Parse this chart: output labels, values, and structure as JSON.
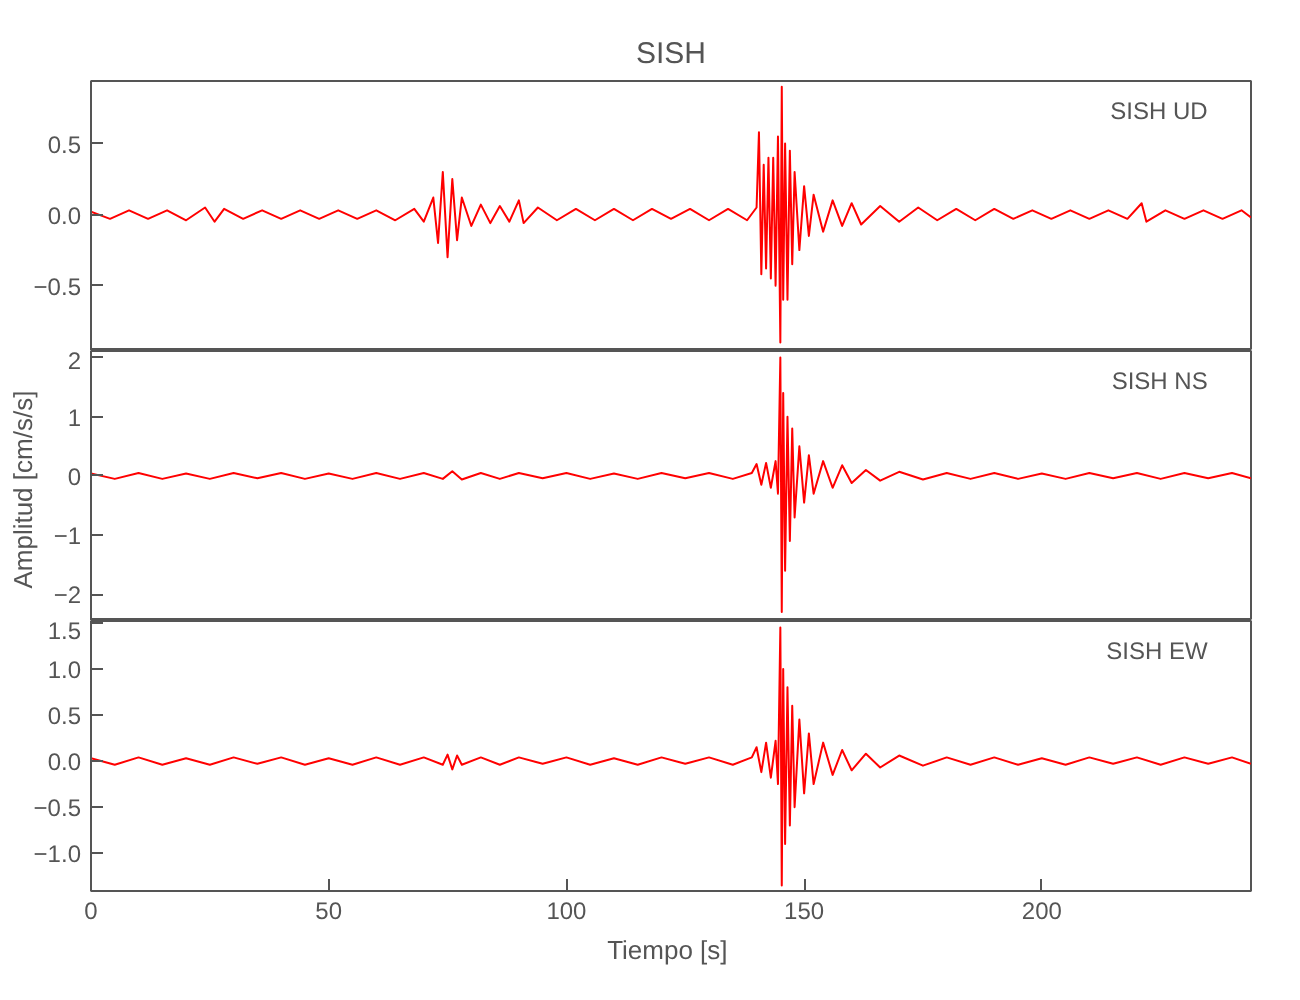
{
  "chart_data": [
    {
      "type": "line",
      "title": "SISH",
      "annotations": [
        "SISH   UD"
      ],
      "xlim": [
        0,
        244
      ],
      "xticks": [
        0,
        50,
        100,
        150,
        200
      ],
      "ylim": [
        -0.96,
        0.94
      ],
      "yticks": [
        {
          "value": -0.5,
          "label": "−0.5"
        },
        {
          "value": 0,
          "label": "0.0"
        },
        {
          "value": 0.5,
          "label": "0.5"
        }
      ],
      "tick_labels": "y",
      "grid": false,
      "series": [
        {
          "color": "#ff0000",
          "x": [
            0,
            4,
            8,
            12,
            16,
            20,
            24,
            26,
            28,
            32,
            36,
            40,
            44,
            48,
            52,
            56,
            60,
            64,
            68,
            70,
            72,
            73,
            74,
            75,
            76,
            77,
            78,
            80,
            82,
            84,
            86,
            88,
            90,
            91,
            94,
            98,
            102,
            106,
            110,
            114,
            118,
            122,
            126,
            130,
            134,
            138,
            140,
            140.5,
            141,
            141.5,
            142,
            142.5,
            143,
            143.5,
            144,
            144.5,
            145,
            145.3,
            145.6,
            146,
            146.5,
            147,
            147.5,
            148,
            149,
            150,
            151,
            152,
            154,
            156,
            158,
            160,
            162,
            166,
            170,
            174,
            178,
            182,
            186,
            190,
            194,
            198,
            202,
            206,
            210,
            214,
            218,
            221,
            222,
            226,
            230,
            234,
            238,
            242,
            244
          ],
          "values": [
            0.02,
            -0.03,
            0.03,
            -0.03,
            0.03,
            -0.04,
            0.05,
            -0.05,
            0.04,
            -0.03,
            0.03,
            -0.03,
            0.03,
            -0.03,
            0.03,
            -0.03,
            0.03,
            -0.04,
            0.04,
            -0.05,
            0.12,
            -0.2,
            0.3,
            -0.3,
            0.25,
            -0.18,
            0.12,
            -0.08,
            0.07,
            -0.06,
            0.06,
            -0.05,
            0.1,
            -0.06,
            0.05,
            -0.04,
            0.04,
            -0.04,
            0.04,
            -0.04,
            0.04,
            -0.03,
            0.04,
            -0.04,
            0.04,
            -0.04,
            0.05,
            0.58,
            -0.42,
            0.35,
            -0.38,
            0.4,
            -0.45,
            0.4,
            -0.5,
            0.55,
            -0.9,
            0.9,
            -0.6,
            0.5,
            -0.6,
            0.45,
            -0.35,
            0.3,
            -0.25,
            0.2,
            -0.15,
            0.14,
            -0.12,
            0.1,
            -0.08,
            0.08,
            -0.07,
            0.06,
            -0.05,
            0.05,
            -0.04,
            0.04,
            -0.04,
            0.04,
            -0.03,
            0.03,
            -0.03,
            0.03,
            -0.03,
            0.03,
            -0.03,
            0.08,
            -0.05,
            0.03,
            -0.03,
            0.03,
            -0.03,
            0.03,
            -0.02
          ]
        }
      ]
    },
    {
      "type": "line",
      "ylabel": "Amplitud  [cm/s/s]",
      "annotations": [
        "SISH   NS"
      ],
      "xlim": [
        0,
        244
      ],
      "xticks": [
        0,
        50,
        100,
        150,
        200
      ],
      "ylim": [
        -2.45,
        2.11
      ],
      "yticks": [
        {
          "value": -2,
          "label": "−2"
        },
        {
          "value": -1,
          "label": "−1"
        },
        0,
        1,
        2
      ],
      "tick_labels": "y",
      "grid": false,
      "series": [
        {
          "color": "#ff0000",
          "x": [
            0,
            5,
            10,
            15,
            20,
            25,
            30,
            35,
            40,
            45,
            50,
            55,
            60,
            65,
            70,
            74,
            76,
            78,
            82,
            86,
            90,
            95,
            100,
            105,
            110,
            115,
            120,
            125,
            130,
            135,
            139,
            140,
            141,
            142,
            143,
            144,
            144.5,
            145,
            145.3,
            145.6,
            146,
            146.5,
            147,
            147.5,
            148,
            149,
            150,
            151,
            152,
            154,
            156,
            158,
            160,
            163,
            166,
            170,
            175,
            180,
            185,
            190,
            195,
            200,
            205,
            210,
            215,
            220,
            225,
            230,
            235,
            240,
            244
          ],
          "values": [
            0.04,
            -0.05,
            0.05,
            -0.05,
            0.04,
            -0.05,
            0.05,
            -0.04,
            0.05,
            -0.05,
            0.04,
            -0.05,
            0.05,
            -0.05,
            0.05,
            -0.05,
            0.08,
            -0.06,
            0.05,
            -0.05,
            0.05,
            -0.04,
            0.05,
            -0.05,
            0.04,
            -0.05,
            0.05,
            -0.04,
            0.05,
            -0.05,
            0.05,
            0.2,
            -0.15,
            0.22,
            -0.2,
            0.25,
            -0.3,
            2.0,
            -2.3,
            1.4,
            -1.6,
            1.0,
            -1.1,
            0.8,
            -0.7,
            0.5,
            -0.45,
            0.35,
            -0.3,
            0.25,
            -0.2,
            0.18,
            -0.12,
            0.1,
            -0.08,
            0.07,
            -0.06,
            0.05,
            -0.05,
            0.05,
            -0.05,
            0.04,
            -0.05,
            0.05,
            -0.04,
            0.05,
            -0.05,
            0.05,
            -0.04,
            0.05,
            -0.04
          ]
        }
      ]
    },
    {
      "type": "line",
      "xlabel": "Tiempo  [s]",
      "annotations": [
        "SISH   EW"
      ],
      "xlim": [
        0,
        244
      ],
      "xticks": [
        0,
        50,
        100,
        150,
        200
      ],
      "ylim": [
        -1.41,
        1.52
      ],
      "yticks": [
        {
          "value": -1,
          "label": "−1.0"
        },
        {
          "value": -0.5,
          "label": "−0.5"
        },
        {
          "value": 0,
          "label": "0.0"
        },
        {
          "value": 0.5,
          "label": "0.5"
        },
        {
          "value": 1,
          "label": "1.0"
        },
        {
          "value": 1.5,
          "label": "1.5"
        }
      ],
      "grid": false,
      "series": [
        {
          "color": "#ff0000",
          "x": [
            0,
            5,
            10,
            15,
            20,
            25,
            30,
            35,
            40,
            45,
            50,
            55,
            60,
            65,
            70,
            74,
            75,
            76,
            77,
            78,
            82,
            86,
            90,
            95,
            100,
            105,
            110,
            115,
            120,
            125,
            130,
            135,
            139,
            140,
            141,
            142,
            143,
            144,
            144.5,
            145,
            145.3,
            145.6,
            146,
            146.5,
            147,
            147.5,
            148,
            149,
            150,
            151,
            152,
            154,
            156,
            158,
            160,
            163,
            166,
            170,
            175,
            180,
            185,
            190,
            195,
            200,
            205,
            210,
            215,
            220,
            225,
            230,
            235,
            240,
            244
          ],
          "values": [
            0.03,
            -0.04,
            0.04,
            -0.04,
            0.03,
            -0.04,
            0.04,
            -0.03,
            0.04,
            -0.04,
            0.03,
            -0.04,
            0.04,
            -0.04,
            0.04,
            -0.04,
            0.07,
            -0.09,
            0.06,
            -0.04,
            0.04,
            -0.04,
            0.04,
            -0.03,
            0.04,
            -0.04,
            0.03,
            -0.04,
            0.04,
            -0.03,
            0.04,
            -0.04,
            0.04,
            0.15,
            -0.12,
            0.2,
            -0.18,
            0.22,
            -0.25,
            1.45,
            -1.35,
            1.0,
            -0.9,
            0.8,
            -0.7,
            0.6,
            -0.5,
            0.45,
            -0.35,
            0.3,
            -0.25,
            0.2,
            -0.15,
            0.12,
            -0.1,
            0.08,
            -0.07,
            0.06,
            -0.05,
            0.04,
            -0.04,
            0.04,
            -0.04,
            0.03,
            -0.04,
            0.04,
            -0.03,
            0.04,
            -0.04,
            0.04,
            -0.03,
            0.04,
            -0.03
          ]
        }
      ]
    }
  ]
}
